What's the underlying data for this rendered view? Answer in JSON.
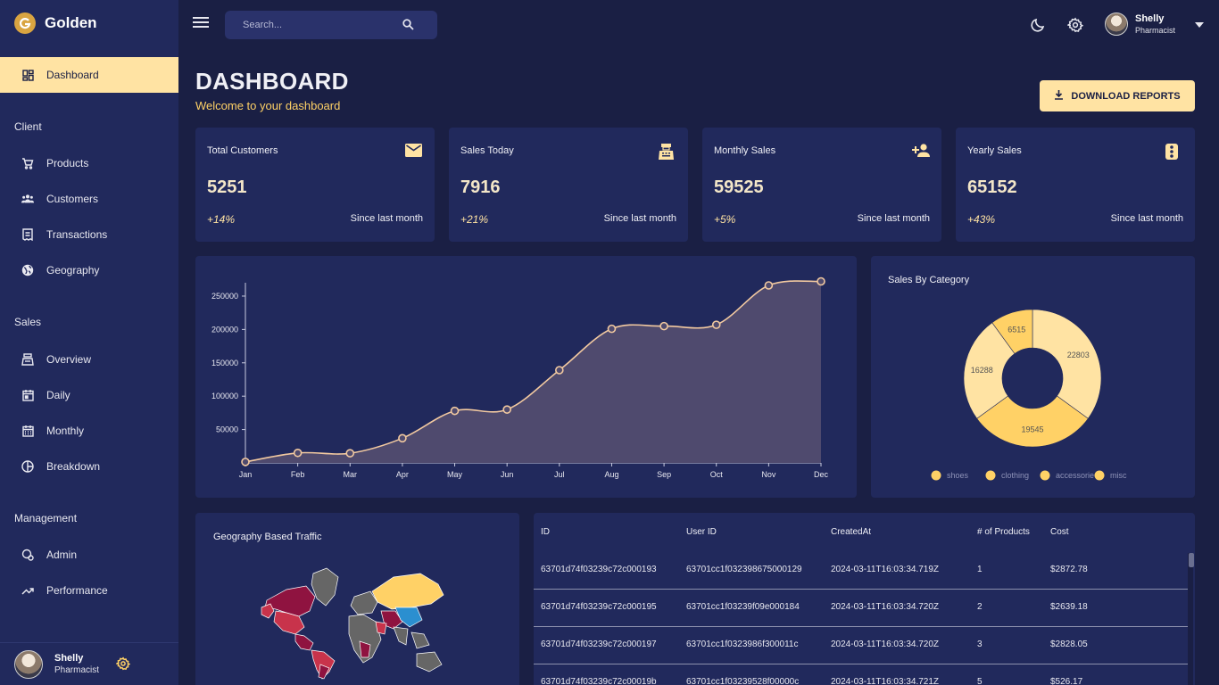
{
  "brand": {
    "name": "Golden"
  },
  "sidebar": {
    "active": {
      "label": "Dashboard"
    },
    "sections": [
      {
        "title": "Client",
        "items": [
          "Products",
          "Customers",
          "Transactions",
          "Geography"
        ]
      },
      {
        "title": "Sales",
        "items": [
          "Overview",
          "Daily",
          "Monthly",
          "Breakdown"
        ]
      },
      {
        "title": "Management",
        "items": [
          "Admin",
          "Performance"
        ]
      }
    ]
  },
  "user": {
    "name": "Shelly",
    "role": "Pharmacist"
  },
  "search": {
    "placeholder": "Search..."
  },
  "header": {
    "title": "DASHBOARD",
    "subtitle": "Welcome to your dashboard",
    "download_label": "DOWNLOAD REPORTS"
  },
  "stats": [
    {
      "title": "Total Customers",
      "value": "5251",
      "delta": "+14%",
      "since": "Since last month",
      "icon": "email-icon"
    },
    {
      "title": "Sales Today",
      "value": "7916",
      "delta": "+21%",
      "since": "Since last month",
      "icon": "point-of-sale-icon"
    },
    {
      "title": "Monthly Sales",
      "value": "59525",
      "delta": "+5%",
      "since": "Since last month",
      "icon": "person-add-icon"
    },
    {
      "title": "Yearly Sales",
      "value": "65152",
      "delta": "+43%",
      "since": "Since last month",
      "icon": "traffic-icon"
    }
  ],
  "chart_data": [
    {
      "type": "area",
      "title": "",
      "x": [
        "Jan",
        "Feb",
        "Mar",
        "Apr",
        "May",
        "Jun",
        "Jul",
        "Aug",
        "Sep",
        "Oct",
        "Nov",
        "Dec"
      ],
      "values": [
        1500,
        15000,
        14500,
        37000,
        78000,
        80000,
        139000,
        201000,
        205000,
        207000,
        266000,
        272000
      ],
      "yticks": [
        50000,
        100000,
        150000,
        200000,
        250000
      ],
      "ylim": [
        0,
        270000
      ],
      "color": "#f2c9a0",
      "fill": "#4f4a6e"
    },
    {
      "type": "pie",
      "title": "Sales By Category",
      "categories": [
        "shoes",
        "clothing",
        "accessories",
        "misc"
      ],
      "values": [
        22803,
        19545,
        16288,
        6515
      ],
      "colors": [
        "#ffe3a3",
        "#ffd166",
        "#ffe3a3",
        "#ffd166"
      ],
      "legend_labels": [
        "shoes",
        "clothing",
        "accessorie",
        "misc"
      ],
      "legend": "bottom"
    }
  ],
  "geography": {
    "title": "Geography Based Traffic"
  },
  "table": {
    "columns": [
      "ID",
      "User ID",
      "CreatedAt",
      "# of Products",
      "Cost"
    ],
    "rows": [
      [
        "63701d74f03239c72c000193",
        "63701cc1f032398675000129",
        "2024-03-11T16:03:34.719Z",
        "1",
        "$2872.78"
      ],
      [
        "63701d74f03239c72c000195",
        "63701cc1f03239f09e000184",
        "2024-03-11T16:03:34.720Z",
        "2",
        "$2639.18"
      ],
      [
        "63701d74f03239c72c000197",
        "63701cc1f0323986f300011c",
        "2024-03-11T16:03:34.720Z",
        "3",
        "$2828.05"
      ],
      [
        "63701d74f03239c72c00019b",
        "63701cc1f03239528f00000c",
        "2024-03-11T16:03:34.721Z",
        "5",
        "$526.17"
      ]
    ]
  }
}
